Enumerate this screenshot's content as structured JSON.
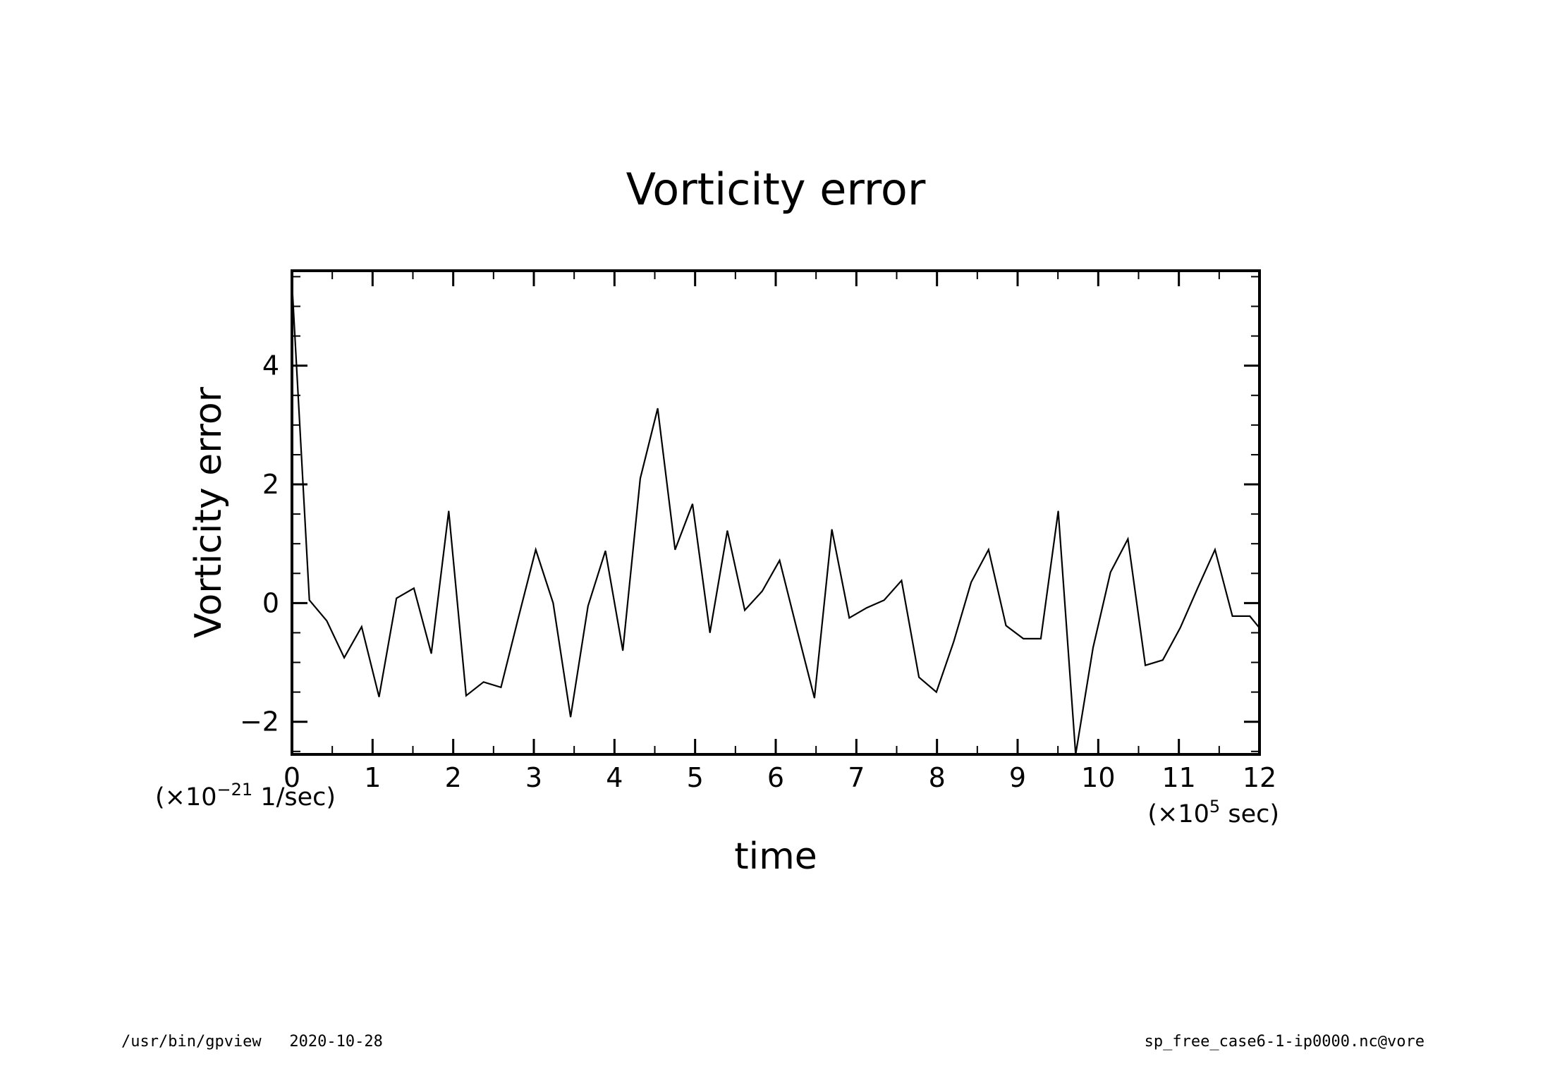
{
  "chart_data": {
    "type": "line",
    "title": "Vorticity error",
    "xlabel": "time",
    "ylabel": "Vorticity error",
    "x_scale_label": {
      "prefix": "(×10",
      "exp": "5",
      "suffix": " sec)"
    },
    "y_scale_label": {
      "prefix": "(×10",
      "exp": "−21",
      "suffix": " 1/sec)"
    },
    "xlim": [
      0,
      12
    ],
    "ylim": [
      -2.55,
      5.6
    ],
    "x_ticks": [
      "0",
      "1",
      "2",
      "3",
      "4",
      "5",
      "6",
      "7",
      "8",
      "9",
      "10",
      "11",
      "12"
    ],
    "y_ticks": [
      "−2",
      "0",
      "2",
      "4"
    ],
    "grid": false,
    "series": [
      {
        "x": [
          0,
          0.216,
          0.432,
          0.648,
          0.864,
          1.08,
          1.296,
          1.512,
          1.728,
          1.944,
          2.16,
          2.376,
          2.592,
          2.808,
          3.024,
          3.24,
          3.456,
          3.672,
          3.888,
          4.104,
          4.32,
          4.536,
          4.752,
          4.968,
          5.184,
          5.4,
          5.616,
          5.832,
          6.048,
          6.264,
          6.48,
          6.696,
          6.912,
          7.128,
          7.344,
          7.56,
          7.776,
          7.992,
          8.208,
          8.424,
          8.64,
          8.856,
          9.072,
          9.288,
          9.504,
          9.72,
          9.936,
          10.152,
          10.368,
          10.584,
          10.8,
          11.016,
          11.232,
          11.448,
          11.664,
          11.88,
          12.0
        ],
        "y": [
          5.4,
          0.05,
          -0.3,
          -0.92,
          -0.4,
          -1.58,
          0.08,
          0.25,
          -0.85,
          1.55,
          -1.56,
          -1.33,
          -1.42,
          -0.25,
          0.9,
          0.0,
          -1.92,
          -0.05,
          0.88,
          -0.8,
          2.1,
          3.28,
          0.9,
          1.67,
          -0.5,
          1.22,
          -0.12,
          0.2,
          0.72,
          -0.45,
          -1.6,
          1.24,
          -0.25,
          -0.08,
          0.05,
          0.38,
          -1.25,
          -1.5,
          -0.65,
          0.35,
          0.9,
          -0.38,
          -0.6,
          -0.6,
          1.55,
          -2.55,
          -0.75,
          0.52,
          1.08,
          -1.05,
          -0.96,
          -0.42,
          0.25,
          0.9,
          -0.22,
          -0.22,
          -0.42
        ]
      }
    ]
  },
  "footer": {
    "left": "/usr/bin/gpview   2020-10-28",
    "right": "sp_free_case6-1-ip0000.nc@vore"
  }
}
